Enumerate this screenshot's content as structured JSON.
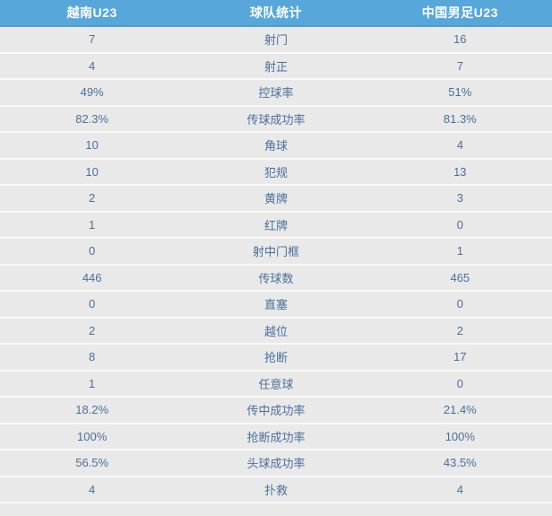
{
  "chart_data": {
    "type": "table",
    "title": "球队统计",
    "header": {
      "home": "越南U23",
      "stat": "球队统计",
      "away": "中国男足U23"
    },
    "rows": [
      {
        "stat": "射门",
        "home": "7",
        "away": "16"
      },
      {
        "stat": "射正",
        "home": "4",
        "away": "7"
      },
      {
        "stat": "控球率",
        "home": "49%",
        "away": "51%"
      },
      {
        "stat": "传球成功率",
        "home": "82.3%",
        "away": "81.3%"
      },
      {
        "stat": "角球",
        "home": "10",
        "away": "4"
      },
      {
        "stat": "犯规",
        "home": "10",
        "away": "13"
      },
      {
        "stat": "黄牌",
        "home": "2",
        "away": "3"
      },
      {
        "stat": "红牌",
        "home": "1",
        "away": "0"
      },
      {
        "stat": "射中门框",
        "home": "0",
        "away": "1"
      },
      {
        "stat": "传球数",
        "home": "446",
        "away": "465"
      },
      {
        "stat": "直塞",
        "home": "0",
        "away": "0"
      },
      {
        "stat": "越位",
        "home": "2",
        "away": "2"
      },
      {
        "stat": "抢断",
        "home": "8",
        "away": "17"
      },
      {
        "stat": "任意球",
        "home": "1",
        "away": "0"
      },
      {
        "stat": "传中成功率",
        "home": "18.2%",
        "away": "21.4%"
      },
      {
        "stat": "抢断成功率",
        "home": "100%",
        "away": "100%"
      },
      {
        "stat": "头球成功率",
        "home": "56.5%",
        "away": "43.5%"
      },
      {
        "stat": "扑救",
        "home": "4",
        "away": "4"
      }
    ]
  },
  "colors": {
    "header_bg": "#58a7da",
    "header_border": "#4c9bcd",
    "header_text": "#ffffff",
    "row_bg": "#e9e9e9",
    "row_separator": "#f9f9f9",
    "cell_text": "#4a6f9b"
  }
}
